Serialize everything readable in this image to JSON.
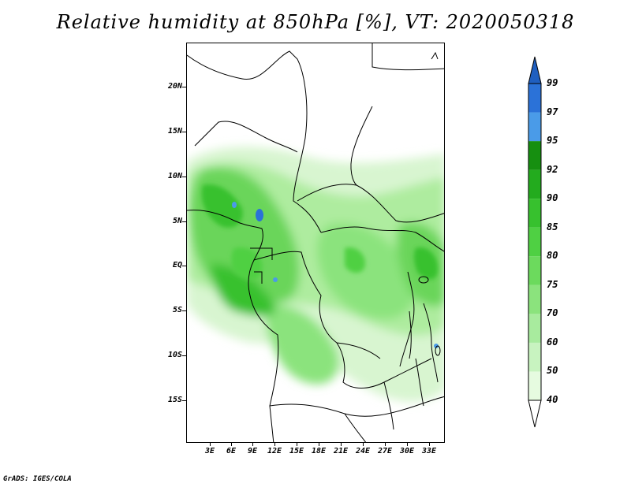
{
  "title": "Relative humidity at 850hPa [%], VT: 2020050318",
  "credit": "GrADS: IGES/COLA",
  "map": {
    "lat_ticks": [
      "20N",
      "15N",
      "10N",
      "5N",
      "EQ",
      "5S",
      "10S",
      "15S"
    ],
    "lon_ticks": [
      "3E",
      "6E",
      "9E",
      "12E",
      "15E",
      "18E",
      "21E",
      "24E",
      "27E",
      "30E",
      "33E"
    ],
    "colors": {
      "land_outline": "#000000",
      "background": "#ffffff"
    }
  },
  "colorbar": {
    "levels": [
      "40",
      "50",
      "60",
      "70",
      "75",
      "80",
      "85",
      "90",
      "92",
      "95",
      "97",
      "99"
    ],
    "colors": [
      "#ffffff",
      "#e6fbe0",
      "#c8f3c0",
      "#a8eb9e",
      "#8be37d",
      "#6cda5d",
      "#4fd043",
      "#37c12e",
      "#23ab1e",
      "#168f10",
      "#4a9be8",
      "#2b72d8",
      "#1f5fc0"
    ]
  }
}
